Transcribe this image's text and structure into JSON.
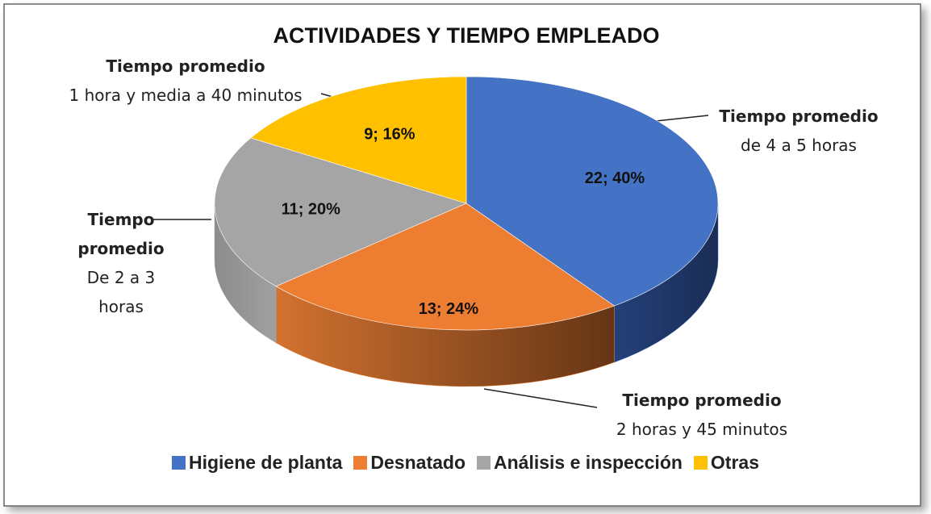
{
  "chart_data": {
    "type": "pie",
    "title": "ACTIVIDADES Y TIEMPO EMPLEADO",
    "categories": [
      "Higiene de planta",
      "Desnatado",
      "Análisis e inspección",
      "Otras"
    ],
    "values": [
      22,
      13,
      11,
      9
    ],
    "value_labels": [
      "22; 40%",
      "13; 24%",
      "11; 20%",
      "9; 16%"
    ],
    "colors": [
      "#4472c4",
      "#ed7d31",
      "#a5a5a5",
      "#ffc000"
    ],
    "annotations": [
      {
        "title": "Tiempo promedio",
        "text": "de 4 a 5 horas"
      },
      {
        "title": "Tiempo promedio",
        "text": "2 horas y 45 minutos"
      },
      {
        "title": "Tiempo promedio",
        "text": "De 2 a 3 horas"
      },
      {
        "title": "Tiempo promedio",
        "text": "1 hora y media a 40 minutos"
      }
    ],
    "legend": "bottom"
  }
}
